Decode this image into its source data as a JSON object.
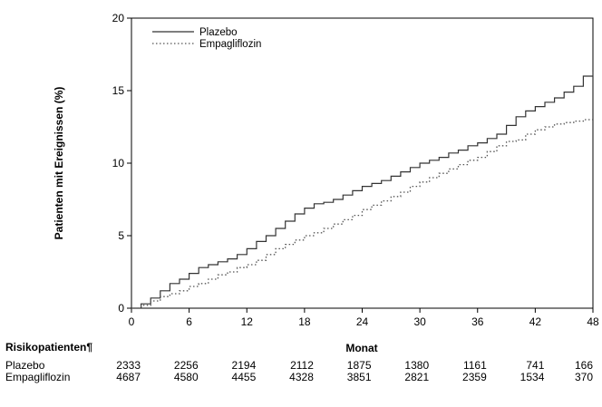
{
  "chart_data": {
    "type": "line",
    "xlabel": "Monat",
    "ylabel": "Patienten mit Ereignissen (%)",
    "xlim": [
      0,
      48
    ],
    "ylim": [
      0,
      20
    ],
    "x_ticks": [
      0,
      6,
      12,
      18,
      24,
      30,
      36,
      42,
      48
    ],
    "y_ticks": [
      0,
      5,
      10,
      15,
      20
    ],
    "grid": false,
    "legend_position": "top-left",
    "series": [
      {
        "name": "Plazebo",
        "line_style": "solid",
        "color": "#333333",
        "x": [
          0,
          1,
          2,
          3,
          4,
          5,
          6,
          7,
          8,
          9,
          10,
          11,
          12,
          13,
          14,
          15,
          16,
          17,
          18,
          19,
          20,
          21,
          22,
          23,
          24,
          25,
          26,
          27,
          28,
          29,
          30,
          31,
          32,
          33,
          34,
          35,
          36,
          37,
          38,
          39,
          40,
          41,
          42,
          43,
          44,
          45,
          46,
          47,
          48
        ],
        "y": [
          0,
          0.3,
          0.7,
          1.2,
          1.7,
          2.0,
          2.4,
          2.8,
          3.0,
          3.2,
          3.4,
          3.7,
          4.1,
          4.6,
          5.0,
          5.5,
          6.0,
          6.5,
          6.9,
          7.2,
          7.3,
          7.5,
          7.8,
          8.1,
          8.4,
          8.6,
          8.8,
          9.1,
          9.4,
          9.7,
          10.0,
          10.2,
          10.4,
          10.7,
          10.9,
          11.2,
          11.4,
          11.7,
          12.0,
          12.6,
          13.2,
          13.6,
          13.9,
          14.2,
          14.5,
          14.9,
          15.3,
          16.0,
          16.3
        ]
      },
      {
        "name": "Empagliflozin",
        "line_style": "dotted",
        "color": "#555555",
        "x": [
          0,
          1,
          2,
          3,
          4,
          5,
          6,
          7,
          8,
          9,
          10,
          11,
          12,
          13,
          14,
          15,
          16,
          17,
          18,
          19,
          20,
          21,
          22,
          23,
          24,
          25,
          26,
          27,
          28,
          29,
          30,
          31,
          32,
          33,
          34,
          35,
          36,
          37,
          38,
          39,
          40,
          41,
          42,
          43,
          44,
          45,
          46,
          47,
          48
        ],
        "y": [
          0,
          0.2,
          0.5,
          0.8,
          1.0,
          1.2,
          1.5,
          1.7,
          2.0,
          2.3,
          2.5,
          2.8,
          3.0,
          3.3,
          3.7,
          4.1,
          4.4,
          4.7,
          5.0,
          5.2,
          5.5,
          5.8,
          6.1,
          6.4,
          6.8,
          7.1,
          7.4,
          7.7,
          8.0,
          8.4,
          8.7,
          9.0,
          9.3,
          9.6,
          9.9,
          10.2,
          10.4,
          10.8,
          11.2,
          11.5,
          11.6,
          12.0,
          12.3,
          12.5,
          12.7,
          12.8,
          12.9,
          13.0,
          13.0
        ]
      }
    ]
  },
  "risk_table": {
    "title": "Risikopatienten¶",
    "x_label": "Monat",
    "months": [
      0,
      6,
      12,
      18,
      24,
      30,
      36,
      42,
      48
    ],
    "rows": [
      {
        "name": "Plazebo",
        "values": [
          "2333",
          "2256",
          "2194",
          "2112",
          "1875",
          "1380",
          "1161",
          "741",
          "166"
        ]
      },
      {
        "name": "Empagliflozin",
        "values": [
          "4687",
          "4580",
          "4455",
          "4328",
          "3851",
          "2821",
          "2359",
          "1534",
          "370"
        ]
      }
    ]
  }
}
